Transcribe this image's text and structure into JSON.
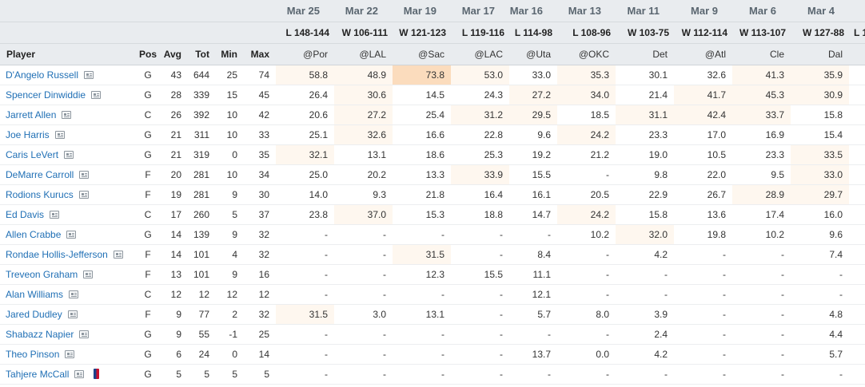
{
  "games": [
    {
      "date": "Mar 25",
      "result": "L 148-144",
      "opp": "@Por"
    },
    {
      "date": "Mar 22",
      "result": "W 106-111",
      "opp": "@LAL"
    },
    {
      "date": "Mar 19",
      "result": "W 121-123",
      "opp": "@Sac"
    },
    {
      "date": "Mar 17",
      "result": "L 119-116",
      "opp": "@LAC"
    },
    {
      "date": "Mar 16",
      "result": "L 114-98",
      "opp": "@Uta"
    },
    {
      "date": "Mar 13",
      "result": "L 108-96",
      "opp": "@OKC"
    },
    {
      "date": "Mar 11",
      "result": "W 103-75",
      "opp": "Det"
    },
    {
      "date": "Mar 9",
      "result": "W 112-114",
      "opp": "@Atl"
    },
    {
      "date": "Mar 6",
      "result": "W 113-107",
      "opp": "Cle"
    },
    {
      "date": "Mar 4",
      "result": "W 127-88",
      "opp": "Dal"
    },
    {
      "date": "",
      "result": "L 1",
      "opp": ""
    }
  ],
  "headers": {
    "player": "Player",
    "pos": "Pos",
    "avg": "Avg",
    "tot": "Tot",
    "min": "Min",
    "max": "Max"
  },
  "players": [
    {
      "name": "D'Angelo Russell",
      "pos": "G",
      "avg": "43",
      "tot": "644",
      "min": "25",
      "max": "74",
      "icon": "player-card-icon",
      "g": [
        "58.8",
        "48.9",
        "73.8",
        "53.0",
        "33.0",
        "35.3",
        "30.1",
        "32.6",
        "41.3",
        "35.9",
        ""
      ],
      "h": [
        1,
        1,
        3,
        1,
        0,
        1,
        0,
        0,
        1,
        1,
        0
      ]
    },
    {
      "name": "Spencer Dinwiddie",
      "pos": "G",
      "avg": "28",
      "tot": "339",
      "min": "15",
      "max": "45",
      "icon": "player-card-icon",
      "g": [
        "26.4",
        "30.6",
        "14.5",
        "24.3",
        "27.2",
        "34.0",
        "21.4",
        "41.7",
        "45.3",
        "30.9",
        ""
      ],
      "h": [
        0,
        1,
        0,
        0,
        1,
        1,
        0,
        1,
        1,
        1,
        0
      ]
    },
    {
      "name": "Jarrett Allen",
      "pos": "C",
      "avg": "26",
      "tot": "392",
      "min": "10",
      "max": "42",
      "icon": "player-card-icon",
      "g": [
        "20.6",
        "27.2",
        "25.4",
        "31.2",
        "29.5",
        "18.5",
        "31.1",
        "42.4",
        "33.7",
        "15.8",
        ""
      ],
      "h": [
        0,
        1,
        0,
        1,
        1,
        0,
        1,
        1,
        1,
        0,
        0
      ]
    },
    {
      "name": "Joe Harris",
      "pos": "G",
      "avg": "21",
      "tot": "311",
      "min": "10",
      "max": "33",
      "icon": "player-card-icon",
      "g": [
        "25.1",
        "32.6",
        "16.6",
        "22.8",
        "9.6",
        "24.2",
        "23.3",
        "17.0",
        "16.9",
        "15.4",
        ""
      ],
      "h": [
        0,
        1,
        0,
        0,
        0,
        1,
        0,
        0,
        0,
        0,
        0
      ]
    },
    {
      "name": "Caris LeVert",
      "pos": "G",
      "avg": "21",
      "tot": "319",
      "min": "0",
      "max": "35",
      "icon": "player-card-icon",
      "g": [
        "32.1",
        "13.1",
        "18.6",
        "25.3",
        "19.2",
        "21.2",
        "19.0",
        "10.5",
        "23.3",
        "33.5",
        ""
      ],
      "h": [
        1,
        0,
        0,
        0,
        0,
        0,
        0,
        0,
        0,
        1,
        0
      ]
    },
    {
      "name": "DeMarre Carroll",
      "pos": "F",
      "avg": "20",
      "tot": "281",
      "min": "10",
      "max": "34",
      "icon": "player-card-icon",
      "g": [
        "25.0",
        "20.2",
        "13.3",
        "33.9",
        "15.5",
        "-",
        "9.8",
        "22.0",
        "9.5",
        "33.0",
        ""
      ],
      "h": [
        0,
        0,
        0,
        1,
        0,
        0,
        0,
        0,
        0,
        1,
        0
      ]
    },
    {
      "name": "Rodions Kurucs",
      "pos": "F",
      "avg": "19",
      "tot": "281",
      "min": "9",
      "max": "30",
      "icon": "player-card-icon",
      "g": [
        "14.0",
        "9.3",
        "21.8",
        "16.4",
        "16.1",
        "20.5",
        "22.9",
        "26.7",
        "28.9",
        "29.7",
        ""
      ],
      "h": [
        0,
        0,
        0,
        0,
        0,
        0,
        0,
        0,
        1,
        1,
        0
      ]
    },
    {
      "name": "Ed Davis",
      "pos": "C",
      "avg": "17",
      "tot": "260",
      "min": "5",
      "max": "37",
      "icon": "player-card-icon",
      "g": [
        "23.8",
        "37.0",
        "15.3",
        "18.8",
        "14.7",
        "24.2",
        "15.8",
        "13.6",
        "17.4",
        "16.0",
        ""
      ],
      "h": [
        0,
        1,
        0,
        0,
        0,
        1,
        0,
        0,
        0,
        0,
        0
      ]
    },
    {
      "name": "Allen Crabbe",
      "pos": "G",
      "avg": "14",
      "tot": "139",
      "min": "9",
      "max": "32",
      "icon": "player-card-icon",
      "g": [
        "-",
        "-",
        "-",
        "-",
        "-",
        "10.2",
        "32.0",
        "19.8",
        "10.2",
        "9.6",
        ""
      ],
      "h": [
        0,
        0,
        0,
        0,
        0,
        0,
        1,
        0,
        0,
        0,
        0
      ]
    },
    {
      "name": "Rondae Hollis-Jefferson",
      "pos": "F",
      "avg": "14",
      "tot": "101",
      "min": "4",
      "max": "32",
      "icon": "player-card-icon",
      "g": [
        "-",
        "-",
        "31.5",
        "-",
        "8.4",
        "-",
        "4.2",
        "-",
        "-",
        "7.4",
        ""
      ],
      "h": [
        0,
        0,
        1,
        0,
        0,
        0,
        0,
        0,
        0,
        0,
        0
      ]
    },
    {
      "name": "Treveon Graham",
      "pos": "F",
      "avg": "13",
      "tot": "101",
      "min": "9",
      "max": "16",
      "icon": "player-card-icon",
      "g": [
        "-",
        "-",
        "12.3",
        "15.5",
        "11.1",
        "-",
        "-",
        "-",
        "-",
        "-",
        ""
      ],
      "h": [
        0,
        0,
        0,
        0,
        0,
        0,
        0,
        0,
        0,
        0,
        0
      ]
    },
    {
      "name": "Alan Williams",
      "pos": "C",
      "avg": "12",
      "tot": "12",
      "min": "12",
      "max": "12",
      "icon": "player-card-icon",
      "g": [
        "-",
        "-",
        "-",
        "-",
        "12.1",
        "-",
        "-",
        "-",
        "-",
        "-",
        ""
      ],
      "h": [
        0,
        0,
        0,
        0,
        0,
        0,
        0,
        0,
        0,
        0,
        0
      ]
    },
    {
      "name": "Jared Dudley",
      "pos": "F",
      "avg": "9",
      "tot": "77",
      "min": "2",
      "max": "32",
      "icon": "player-card-icon",
      "g": [
        "31.5",
        "3.0",
        "13.1",
        "-",
        "5.7",
        "8.0",
        "3.9",
        "-",
        "-",
        "4.8",
        ""
      ],
      "h": [
        1,
        0,
        0,
        0,
        0,
        0,
        0,
        0,
        0,
        0,
        0
      ]
    },
    {
      "name": "Shabazz Napier",
      "pos": "G",
      "avg": "9",
      "tot": "55",
      "min": "-1",
      "max": "25",
      "icon": "player-card-icon",
      "g": [
        "-",
        "-",
        "-",
        "-",
        "-",
        "-",
        "2.4",
        "-",
        "-",
        "4.4",
        ""
      ],
      "h": [
        0,
        0,
        0,
        0,
        0,
        0,
        0,
        0,
        0,
        0,
        0
      ]
    },
    {
      "name": "Theo Pinson",
      "pos": "G",
      "avg": "6",
      "tot": "24",
      "min": "0",
      "max": "14",
      "icon": "player-card-icon",
      "g": [
        "-",
        "-",
        "-",
        "-",
        "13.7",
        "0.0",
        "4.2",
        "-",
        "-",
        "5.7",
        ""
      ],
      "h": [
        0,
        0,
        0,
        0,
        0,
        0,
        0,
        0,
        0,
        0,
        0
      ]
    },
    {
      "name": "Tahjere McCall",
      "pos": "G",
      "avg": "5",
      "tot": "5",
      "min": "5",
      "max": "5",
      "icon": "player-card-icon",
      "icon2": "nba-logo-icon",
      "g": [
        "-",
        "-",
        "-",
        "-",
        "-",
        "-",
        "-",
        "-",
        "-",
        "-",
        ""
      ],
      "h": [
        0,
        0,
        0,
        0,
        0,
        0,
        0,
        0,
        0,
        0,
        0
      ]
    }
  ]
}
